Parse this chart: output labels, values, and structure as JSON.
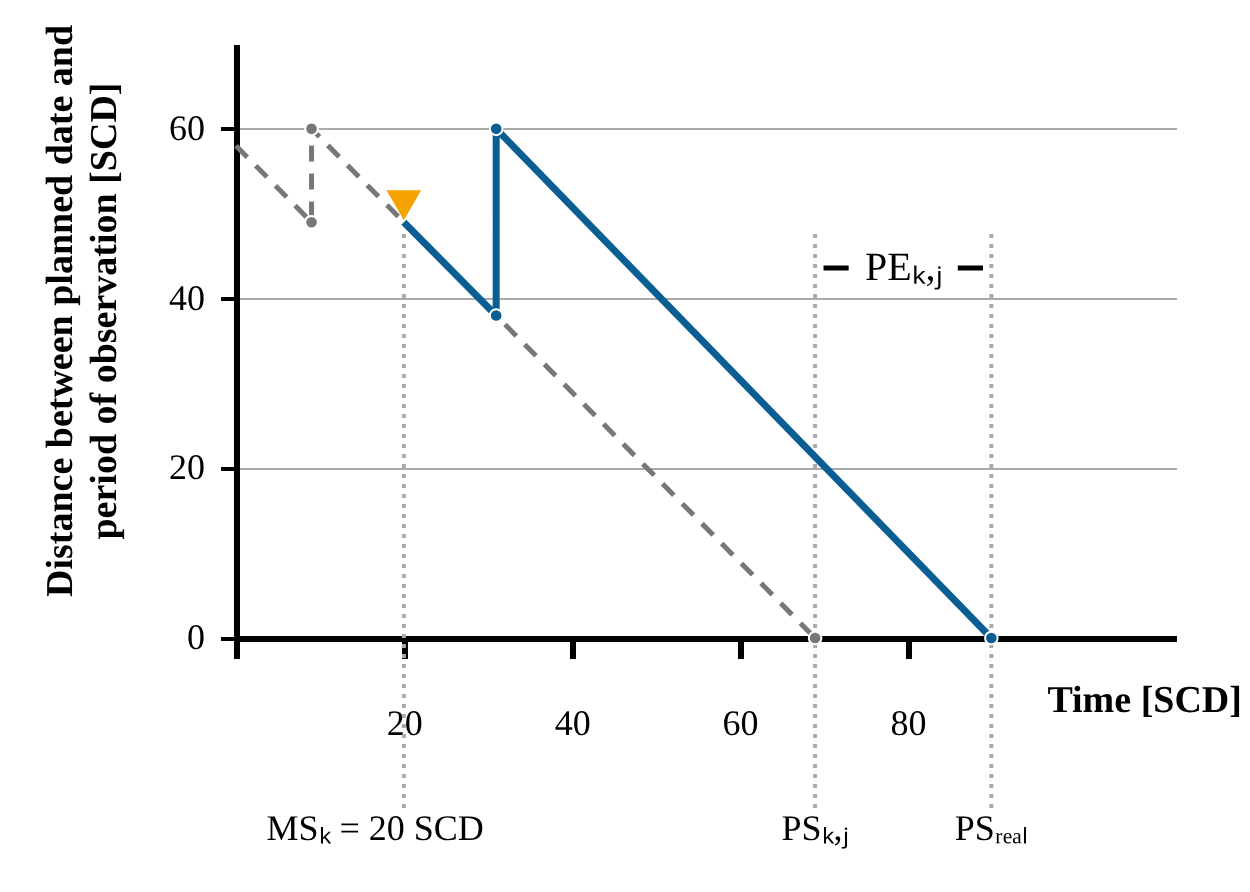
{
  "chart_data": {
    "type": "line",
    "xlabel": "Time [SCD]",
    "ylabel": "Distance between planned date and period of observation [SCD]",
    "xlim": [
      0,
      112
    ],
    "ylim": [
      0,
      70
    ],
    "xticks": [
      {
        "value": 0,
        "label": null
      },
      20,
      40,
      60,
      80
    ],
    "yticks": [
      0,
      20,
      40,
      60
    ],
    "grid": "y",
    "series": [
      {
        "x": [
          0,
          9,
          9,
          69
        ],
        "values": [
          58,
          49,
          60,
          0
        ],
        "color": "#777777",
        "line_style": "dashed",
        "marker": "circle"
      },
      {
        "x": [
          20,
          31,
          31,
          90
        ],
        "values": [
          49,
          38,
          60,
          0
        ],
        "color": "#0b5e94",
        "line_style": "solid",
        "marker": "circle"
      },
      {
        "type": "scatter",
        "x": [
          20
        ],
        "values": [
          51
        ],
        "color": "#f5a300",
        "marker": "triangle"
      }
    ],
    "ref_lines": [
      {
        "axis": "x",
        "value": 20,
        "label": "MSₖ = 20 SCD",
        "color": "#aaaaaa",
        "line_style": "dotted"
      },
      {
        "axis": "x",
        "value": 69,
        "label": "PSₖ,ⱼ",
        "color": "#aaaaaa",
        "line_style": "dotted"
      },
      {
        "axis": "x",
        "value": 90,
        "label": "PSᵣₑₐₗ",
        "color": "#aaaaaa",
        "line_style": "dotted"
      }
    ],
    "annotations": [
      "PEₖ,ⱼ"
    ]
  }
}
